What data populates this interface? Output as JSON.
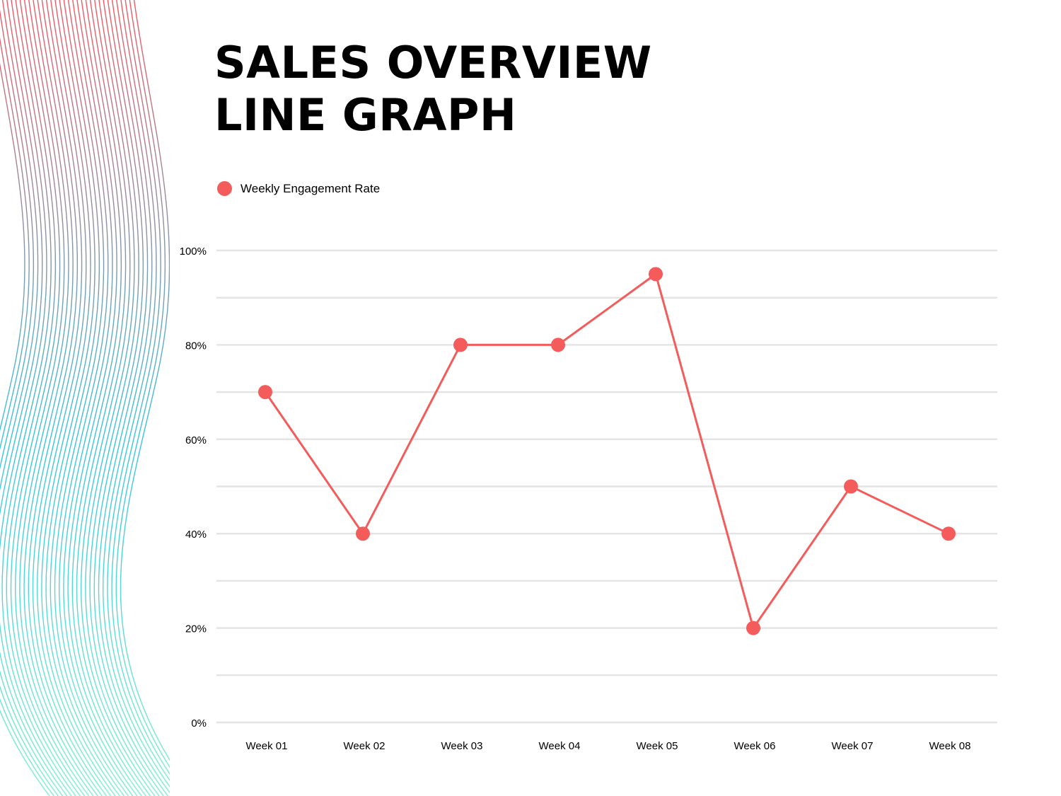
{
  "page": {
    "title_line1": "SALES OVERVIEW",
    "title_line2": "LINE GRAPH"
  },
  "colors": {
    "series": "#f45b5b",
    "grid": "#e4e4e4",
    "decor_top": "#ee5a66",
    "decor_mid": "#34c4dd",
    "decor_bottom": "#7ff0cf"
  },
  "chart_data": {
    "type": "line",
    "categories": [
      "Week 01",
      "Week 02",
      "Week 03",
      "Week 04",
      "Week 05",
      "Week 06",
      "Week 07",
      "Week 08"
    ],
    "series": [
      {
        "name": "Weekly Engagement Rate",
        "values": [
          70,
          40,
          80,
          80,
          95,
          20,
          50,
          40
        ]
      }
    ],
    "ylim": [
      0,
      100
    ],
    "yticks": [
      0,
      20,
      40,
      60,
      80,
      100
    ],
    "ytick_labels": [
      "0%",
      "20%",
      "40%",
      "60%",
      "80%",
      "100%"
    ],
    "minor_gridlines_at": [
      10,
      30,
      50,
      70,
      90
    ],
    "grid": true,
    "legend_position": "top-left"
  }
}
